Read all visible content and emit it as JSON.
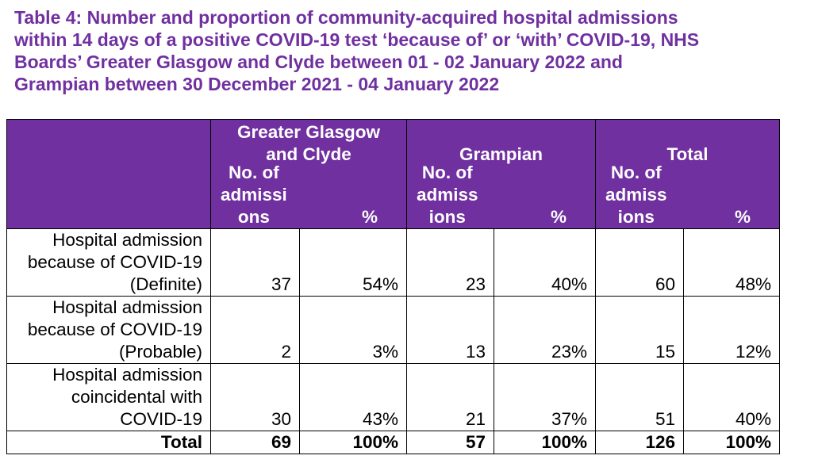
{
  "title_lines": [
    "Table 4: Number and proportion of community-acquired hospital admissions",
    "within 14 days of a positive COVID-19 test ‘because of’ or ‘with’ COVID-19, NHS",
    "Boards’ Greater Glasgow and Clyde between 01 - 02 January 2022 and",
    "Grampian between 30 December 2021 - 04 January 2022"
  ],
  "groups": [
    {
      "name_lines": [
        "Greater Glasgow",
        "and Clyde"
      ],
      "count_lines": [
        "No. of",
        "admissi",
        "ons"
      ],
      "pct_label": "%"
    },
    {
      "name_lines": [
        "Grampian"
      ],
      "count_lines": [
        "No. of",
        "admiss",
        "ions"
      ],
      "pct_label": "%"
    },
    {
      "name_lines": [
        "Total"
      ],
      "count_lines": [
        "No. of",
        "admiss",
        "ions"
      ],
      "pct_label": "%"
    }
  ],
  "rows": [
    {
      "label_lines": [
        "Hospital admission",
        "because of COVID-19",
        "(Definite)"
      ],
      "values": [
        "37",
        "54%",
        "23",
        "40%",
        "60",
        "48%"
      ]
    },
    {
      "label_lines": [
        "Hospital admission",
        "because of COVID-19",
        "(Probable)"
      ],
      "values": [
        "2",
        "3%",
        "13",
        "23%",
        "15",
        "12%"
      ]
    },
    {
      "label_lines": [
        "Hospital admission",
        "coincidental with",
        "COVID-19"
      ],
      "values": [
        "30",
        "43%",
        "21",
        "37%",
        "51",
        "40%"
      ]
    }
  ],
  "total_row": {
    "label": "Total",
    "values": [
      "69",
      "100%",
      "57",
      "100%",
      "126",
      "100%"
    ]
  }
}
